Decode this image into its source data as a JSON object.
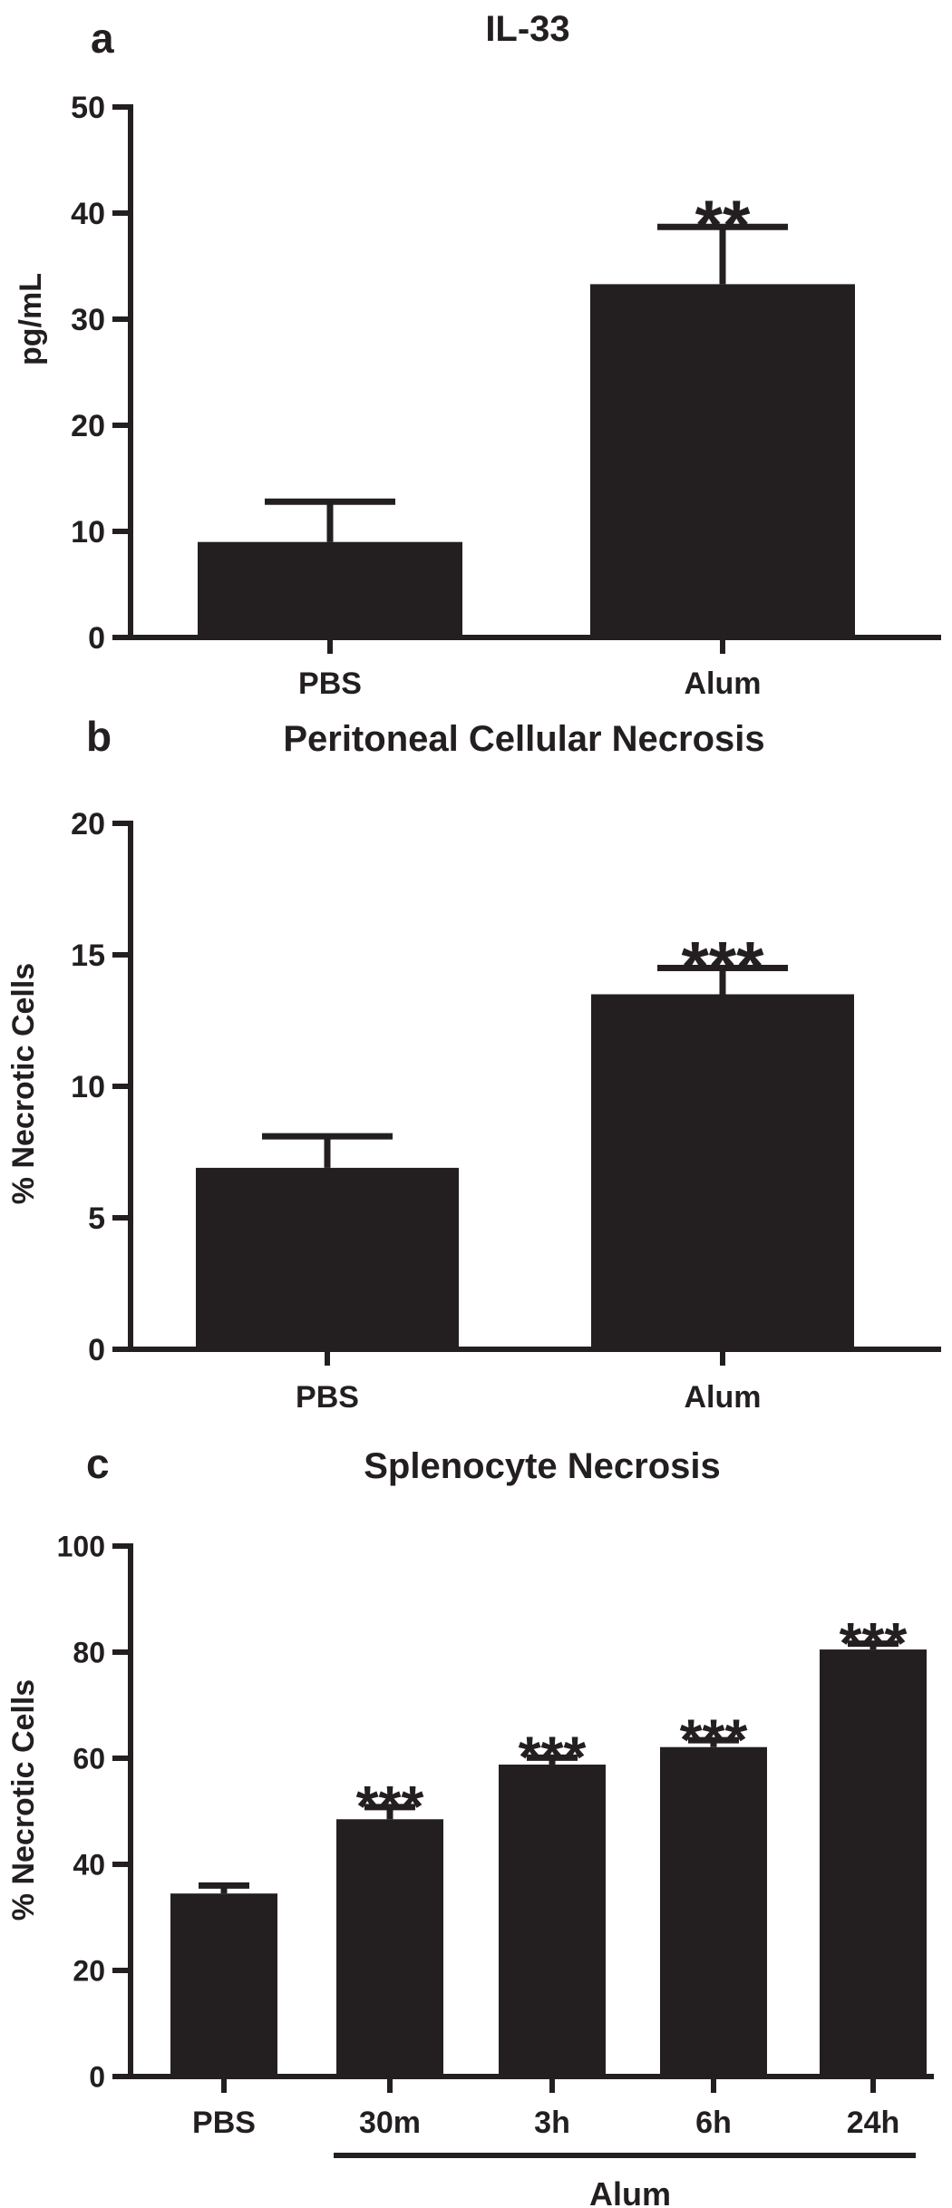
{
  "colors": {
    "bar": "#231f20",
    "axis": "#231f20",
    "background": "#ffffff"
  },
  "chart_data": [
    {
      "panel_label": "a",
      "type": "bar",
      "title": "IL-33",
      "ylabel": "pg/mL",
      "xlabel": "",
      "ylim": [
        0,
        50
      ],
      "yticks": [
        0,
        10,
        20,
        30,
        40,
        50
      ],
      "categories": [
        "PBS",
        "Alum"
      ],
      "values": [
        9,
        33.3
      ],
      "errors": [
        3.8,
        5.4
      ],
      "significance": [
        "",
        "**"
      ],
      "grid": false,
      "legend": "none"
    },
    {
      "panel_label": "b",
      "type": "bar",
      "title": "Peritoneal Cellular Necrosis",
      "ylabel": "% Necrotic Cells",
      "xlabel": "",
      "ylim": [
        0,
        20
      ],
      "yticks": [
        0,
        5,
        10,
        15,
        20
      ],
      "categories": [
        "PBS",
        "Alum"
      ],
      "values": [
        6.9,
        13.5
      ],
      "errors": [
        1.2,
        1.0
      ],
      "significance": [
        "",
        "***"
      ],
      "grid": false,
      "legend": "none"
    },
    {
      "panel_label": "c",
      "type": "bar",
      "title": "Splenocyte Necrosis",
      "ylabel": "% Necrotic Cells",
      "xlabel": "",
      "ylim": [
        0,
        100
      ],
      "yticks": [
        0,
        20,
        40,
        60,
        80,
        100
      ],
      "categories": [
        "PBS",
        "30m",
        "3h",
        "6h",
        "24h"
      ],
      "values": [
        34.5,
        48.5,
        58.8,
        62.1,
        80.5
      ],
      "errors": [
        1.5,
        2.3,
        1.3,
        1.3,
        1.1
      ],
      "significance": [
        "",
        "***",
        "***",
        "***",
        "***"
      ],
      "group_label": "Alum",
      "grid": false,
      "legend": "none"
    }
  ]
}
